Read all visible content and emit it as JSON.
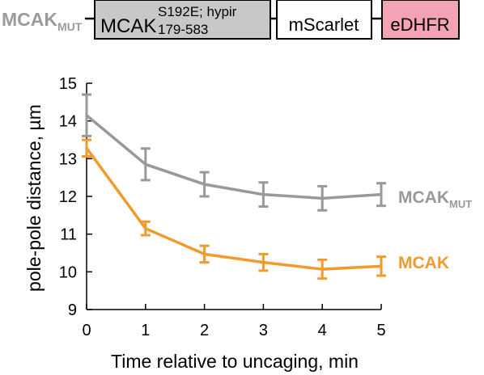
{
  "construct": {
    "label_main": "MCAK",
    "label_sub": "MUT",
    "domains": [
      {
        "main": "MCAK",
        "sup": "S192E; hypir",
        "sub": "179-583",
        "fill": "#c8c8c8"
      },
      {
        "main": "mScarlet",
        "fill": "#ffffff"
      },
      {
        "main": "eDHFR",
        "fill": "#f4a3b4"
      }
    ]
  },
  "chart_data": {
    "type": "line",
    "xlabel": "Time relative to uncaging, min",
    "ylabel": "pole-pole distance, µm",
    "x": [
      0,
      1,
      2,
      3,
      4,
      5
    ],
    "xlim": [
      0,
      5
    ],
    "ylim": [
      9,
      15
    ],
    "xticks": [
      "0",
      "1",
      "2",
      "3",
      "4",
      "5"
    ],
    "yticks": [
      "9",
      "10",
      "11",
      "12",
      "13",
      "14",
      "15"
    ],
    "grid": false,
    "legend": "direct labels at right",
    "series": [
      {
        "name": "MCAK",
        "name_sub": "MUT",
        "color": "#999999",
        "values": [
          14.15,
          12.85,
          12.32,
          12.05,
          11.95,
          12.05
        ],
        "errors": [
          0.55,
          0.42,
          0.32,
          0.32,
          0.32,
          0.3
        ]
      },
      {
        "name": "MCAK",
        "name_sub": "",
        "color": "#f29a2e",
        "values": [
          13.28,
          11.15,
          10.47,
          10.25,
          10.07,
          10.15
        ],
        "errors": [
          0.22,
          0.18,
          0.22,
          0.22,
          0.25,
          0.25
        ]
      }
    ]
  }
}
